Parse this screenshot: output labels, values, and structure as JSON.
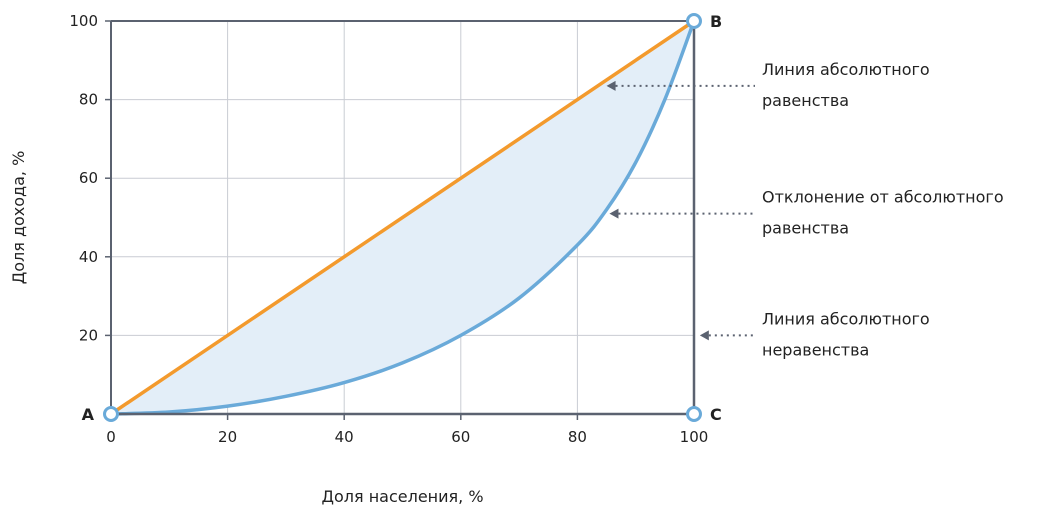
{
  "chart_data": {
    "type": "line",
    "title": "",
    "xlabel": "Доля населения, %",
    "ylabel": "Доля дохода, %",
    "xlim": [
      0,
      100
    ],
    "ylim": [
      0,
      100
    ],
    "x_ticks": [
      "0",
      "20",
      "40",
      "60",
      "80",
      "100"
    ],
    "y_ticks": [
      "20",
      "40",
      "60",
      "80",
      "100"
    ],
    "grid": true,
    "series": [
      {
        "color": "#f39a2d",
        "x": [
          0,
          100
        ],
        "y": [
          0,
          100
        ]
      },
      {
        "color": "#6aaad9",
        "x": [
          0,
          10,
          20,
          30,
          40,
          50,
          60,
          70,
          80,
          85,
          90,
          95,
          100
        ],
        "y": [
          0,
          0.5,
          2,
          4.5,
          8,
          13,
          20,
          29.5,
          43,
          52,
          64,
          80,
          100
        ]
      }
    ],
    "fill_between_color": "#e3eef8",
    "points": [
      {
        "label": "A",
        "x": 0,
        "y": 0
      },
      {
        "label": "B",
        "x": 100,
        "y": 100
      },
      {
        "label": "C",
        "x": 100,
        "y": 0
      }
    ],
    "annotations": [
      {
        "lines": [
          "Линия абсолютного",
          "равенства"
        ],
        "target_x": 85,
        "target_y": 83.5
      },
      {
        "lines": [
          "Отклонение от абсолютного",
          "равенства"
        ],
        "target_x": 85.5,
        "target_y": 51
      },
      {
        "lines": [
          "Линия абсолютного",
          "неравенства"
        ],
        "target_x": 101,
        "target_y": 20
      }
    ]
  }
}
